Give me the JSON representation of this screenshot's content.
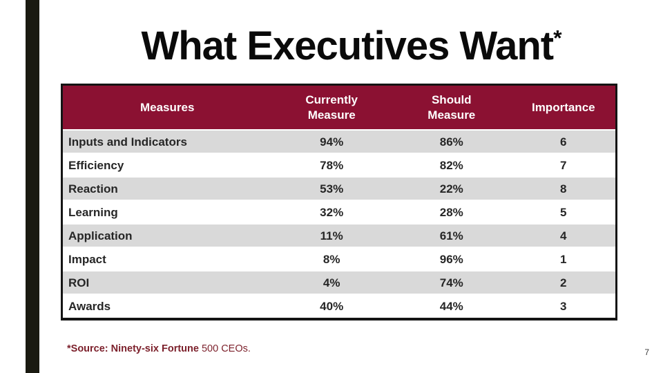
{
  "slide": {
    "title": "What Executives Want",
    "title_superscript": "*",
    "page_number": "7"
  },
  "colors": {
    "header_maroon": "#8b1132",
    "band_gray": "#d9d9d9",
    "sidebar_dark": "#1a1a11",
    "footnote_maroon": "#7b1f2a",
    "border_black": "#141414"
  },
  "table": {
    "columns": [
      {
        "label": "Measures"
      },
      {
        "label": "Currently\nMeasure"
      },
      {
        "label": "Should\nMeasure"
      },
      {
        "label": "Importance"
      }
    ],
    "rows": [
      {
        "measure": "Inputs and Indicators",
        "currently": "94%",
        "should": "86%",
        "importance": "6"
      },
      {
        "measure": "Efficiency",
        "currently": "78%",
        "should": "82%",
        "importance": "7"
      },
      {
        "measure": "Reaction",
        "currently": "53%",
        "should": "22%",
        "importance": "8"
      },
      {
        "measure": "Learning",
        "currently": "32%",
        "should": "28%",
        "importance": "5"
      },
      {
        "measure": "Application",
        "currently": "11%",
        "should": "61%",
        "importance": "4"
      },
      {
        "measure": "Impact",
        "currently": "8%",
        "should": "96%",
        "importance": "1"
      },
      {
        "measure": "ROI",
        "currently": "4%",
        "should": "74%",
        "importance": "2"
      },
      {
        "measure": "Awards",
        "currently": "40%",
        "should": "44%",
        "importance": "3"
      }
    ]
  },
  "footnote": {
    "bold": "*Source: Ninety-six Fortune",
    "regular": " 500 CEOs."
  }
}
